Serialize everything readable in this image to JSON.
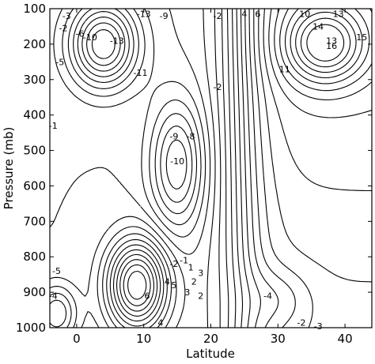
{
  "chart_data": {
    "type": "contour",
    "title": "",
    "xlabel": "Latitude",
    "ylabel": "Pressure (mb)",
    "xlim": [
      -4,
      44
    ],
    "ylim": [
      1000,
      100
    ],
    "x_ticks": [
      "0",
      "10",
      "20",
      "30",
      "40"
    ],
    "x_tick_values": [
      0,
      10,
      20,
      30,
      40
    ],
    "y_ticks": [
      "100",
      "200",
      "300",
      "400",
      "500",
      "600",
      "700",
      "800",
      "900",
      "1000"
    ],
    "y_tick_values": [
      100,
      200,
      300,
      400,
      500,
      600,
      700,
      800,
      900,
      1000
    ],
    "contour_style": {
      "positive": "solid",
      "negative": "dashed"
    },
    "features": [
      {
        "kind": "minimum",
        "value": -13,
        "latitude": 4,
        "pressure": 180
      },
      {
        "kind": "minimum",
        "value": -11,
        "latitude": 16,
        "pressure": 520
      },
      {
        "kind": "maximum",
        "value": 16,
        "latitude": 37,
        "pressure": 200
      },
      {
        "kind": "maximum",
        "value": 6,
        "latitude": 8,
        "pressure": 880
      },
      {
        "kind": "minimum",
        "value": -5,
        "latitude": -2,
        "pressure": 840
      }
    ],
    "contour_labels": [
      {
        "text": "-13",
        "x": 10,
        "y": 115
      },
      {
        "text": "-9",
        "x": 13,
        "y": 120
      },
      {
        "text": "-2",
        "x": 21,
        "y": 120
      },
      {
        "text": "4",
        "x": 25,
        "y": 115
      },
      {
        "text": "6",
        "x": 27,
        "y": 115
      },
      {
        "text": "10",
        "x": 34,
        "y": 115
      },
      {
        "text": "13",
        "x": 39,
        "y": 115
      },
      {
        "text": "14",
        "x": 36,
        "y": 150
      },
      {
        "text": "15",
        "x": 42.5,
        "y": 180
      },
      {
        "text": "16",
        "x": 38,
        "y": 205
      },
      {
        "text": "13",
        "x": 38,
        "y": 190
      },
      {
        "text": "11",
        "x": 31,
        "y": 270
      },
      {
        "text": "-3",
        "x": -1.5,
        "y": 120
      },
      {
        "text": "-2",
        "x": -2,
        "y": 155
      },
      {
        "text": "-6",
        "x": 0.5,
        "y": 170
      },
      {
        "text": "-10",
        "x": 2,
        "y": 180
      },
      {
        "text": "-13",
        "x": 6,
        "y": 190
      },
      {
        "text": "-5",
        "x": -2.5,
        "y": 250
      },
      {
        "text": "-11",
        "x": 9.5,
        "y": 280
      },
      {
        "text": "-2",
        "x": 21,
        "y": 320
      },
      {
        "text": "-1",
        "x": -3.5,
        "y": 430
      },
      {
        "text": "-9",
        "x": 14.5,
        "y": 460
      },
      {
        "text": "-8",
        "x": 17,
        "y": 460
      },
      {
        "text": "-10",
        "x": 15,
        "y": 530
      },
      {
        "text": "-2",
        "x": 14.5,
        "y": 820
      },
      {
        "text": "-1",
        "x": 16,
        "y": 810
      },
      {
        "text": "1",
        "x": 17,
        "y": 830
      },
      {
        "text": "3",
        "x": 18.5,
        "y": 845
      },
      {
        "text": "2",
        "x": 17.5,
        "y": 870
      },
      {
        "text": "4",
        "x": 13.5,
        "y": 870
      },
      {
        "text": "5",
        "x": 14.5,
        "y": 880
      },
      {
        "text": "6",
        "x": 10.5,
        "y": 910
      },
      {
        "text": "3",
        "x": 16.5,
        "y": 900
      },
      {
        "text": "2",
        "x": 18.5,
        "y": 910
      },
      {
        "text": "-5",
        "x": -3,
        "y": 840
      },
      {
        "text": "-4",
        "x": -3.5,
        "y": 910
      },
      {
        "text": "-4",
        "x": 28.5,
        "y": 910
      },
      {
        "text": "-2",
        "x": 33.5,
        "y": 985
      },
      {
        "text": "-3",
        "x": 36,
        "y": 995
      },
      {
        "text": "4",
        "x": 12.5,
        "y": 985
      }
    ]
  }
}
